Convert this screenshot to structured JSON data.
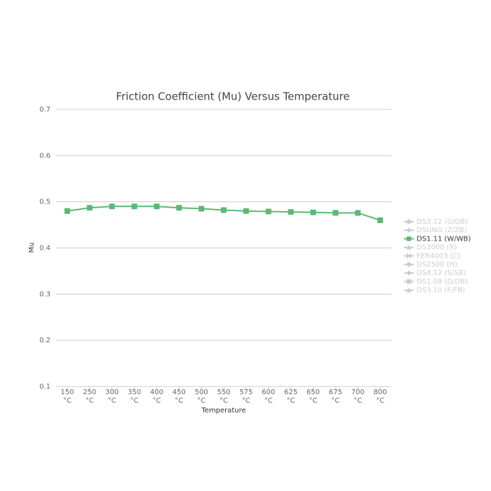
{
  "chart_data": {
    "type": "line",
    "title": "Friction Coefficient (Mu) Versus Temperature",
    "x_label": "Temperature",
    "y_label": "Mu",
    "categories": [
      "150 °C",
      "250 °C",
      "300 °C",
      "350 °C",
      "400 °C",
      "450 °C",
      "500 °C",
      "550 °C",
      "575 °C",
      "600 °C",
      "625 °C",
      "650 °C",
      "675 °C",
      "700 °C",
      "800 °C"
    ],
    "ylim": [
      0.1,
      0.7
    ],
    "yticks": [
      0.1,
      0.2,
      0.3,
      0.4,
      0.5,
      0.6,
      0.7
    ],
    "grid": true,
    "legend": "right",
    "series": [
      {
        "name": "DS3.12 (G/GB)",
        "marker": "circle",
        "visible": false
      },
      {
        "name": "DSUNO (Z/ZB)",
        "marker": "diamond",
        "visible": false
      },
      {
        "name": "DS1.11 (W/WB)",
        "marker": "square",
        "color": "#5cb874",
        "visible": true,
        "values": [
          0.48,
          0.487,
          0.49,
          0.49,
          0.49,
          0.487,
          0.485,
          0.482,
          0.48,
          0.479,
          0.478,
          0.477,
          0.476,
          0.476,
          0.46
        ]
      },
      {
        "name": "DS3000 (R)",
        "marker": "triangle",
        "visible": false
      },
      {
        "name": "FER4003 (C)",
        "marker": "cross",
        "visible": false
      },
      {
        "name": "DS2500 (H)",
        "marker": "circle",
        "visible": false
      },
      {
        "name": "DS4.12 (S/SB)",
        "marker": "diamond",
        "visible": false
      },
      {
        "name": "DS1.08 (D/DB)",
        "marker": "square",
        "visible": false
      },
      {
        "name": "DS3.10 (F/FB)",
        "marker": "triangle",
        "visible": false
      }
    ]
  }
}
